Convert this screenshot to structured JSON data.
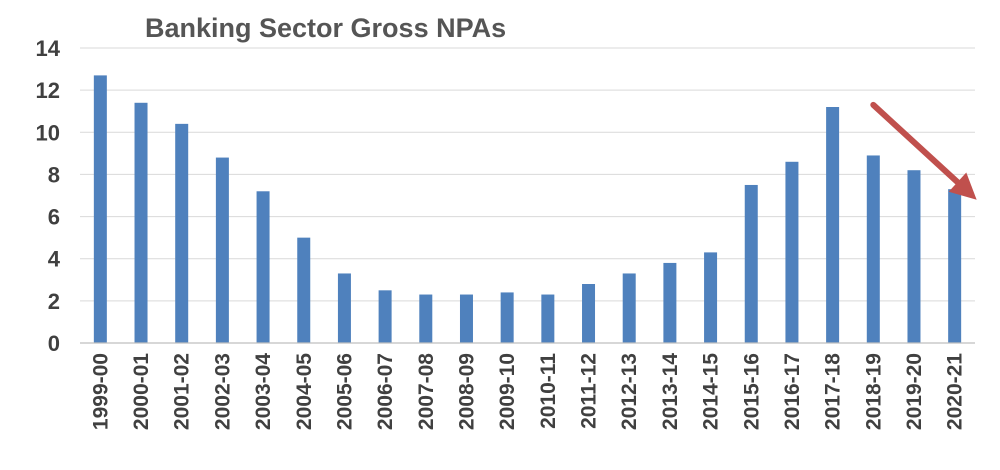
{
  "chart_data": {
    "type": "bar",
    "title": "Banking Sector Gross NPAs",
    "categories": [
      "1999-00",
      "2000-01",
      "2001-02",
      "2002-03",
      "2003-04",
      "2004-05",
      "2005-06",
      "2006-07",
      "2007-08",
      "2008-09",
      "2009-10",
      "2010-11",
      "2011-12",
      "2012-13",
      "2013-14",
      "2014-15",
      "2015-16",
      "2016-17",
      "2017-18",
      "2018-19",
      "2019-20",
      "2020-21"
    ],
    "values": [
      12.7,
      11.4,
      10.4,
      8.8,
      7.2,
      5.0,
      3.3,
      2.5,
      2.3,
      2.3,
      2.4,
      2.3,
      2.8,
      3.3,
      3.8,
      4.3,
      7.5,
      8.6,
      11.2,
      8.9,
      8.2,
      7.3
    ],
    "xlabel": "",
    "ylabel": "",
    "ylim": [
      0,
      14
    ],
    "yticks": [
      0,
      2,
      4,
      6,
      8,
      10,
      12,
      14
    ],
    "grid": true,
    "bar_color": "#4f81bd",
    "annotation": {
      "type": "arrow",
      "color": "#c0504d",
      "from_category": "2018-19",
      "from_value": 11.3,
      "to_category": "2020-21",
      "to_value": 6.8
    }
  }
}
